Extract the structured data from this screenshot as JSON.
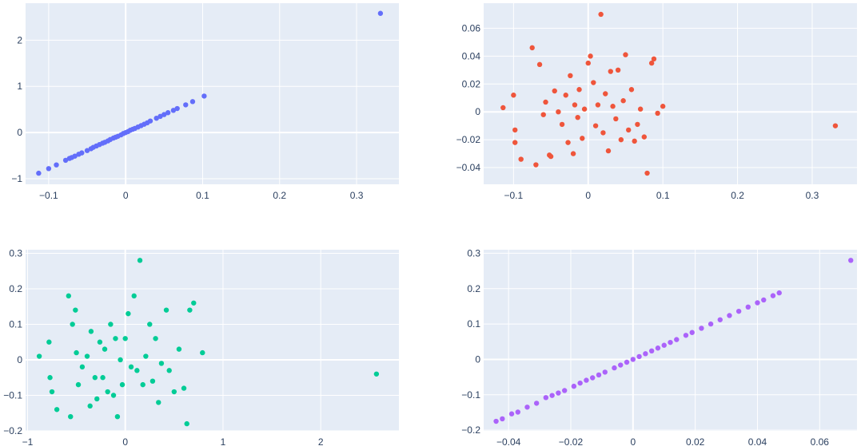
{
  "chart_data": [
    {
      "type": "scatter",
      "color": "#636efa",
      "xlim": [
        -0.13,
        0.355
      ],
      "ylim": [
        -1.12,
        2.8
      ],
      "xticks": [
        -0.1,
        0,
        0.1,
        0.2,
        0.3
      ],
      "xtick_labels": [
        "−0.1",
        "0",
        "0.1",
        "0.2",
        "0.3"
      ],
      "yticks": [
        -1,
        0,
        1,
        2
      ],
      "ytick_labels": [
        "−1",
        "0",
        "1",
        "2"
      ],
      "points": [
        [
          -0.113,
          -0.88
        ],
        [
          -0.1,
          -0.78
        ],
        [
          -0.09,
          -0.7
        ],
        [
          -0.078,
          -0.6
        ],
        [
          -0.073,
          -0.56
        ],
        [
          -0.07,
          -0.54
        ],
        [
          -0.066,
          -0.51
        ],
        [
          -0.061,
          -0.47
        ],
        [
          -0.057,
          -0.44
        ],
        [
          -0.05,
          -0.39
        ],
        [
          -0.045,
          -0.35
        ],
        [
          -0.042,
          -0.32
        ],
        [
          -0.038,
          -0.29
        ],
        [
          -0.034,
          -0.26
        ],
        [
          -0.03,
          -0.23
        ],
        [
          -0.027,
          -0.21
        ],
        [
          -0.023,
          -0.18
        ],
        [
          -0.02,
          -0.15
        ],
        [
          -0.016,
          -0.12
        ],
        [
          -0.013,
          -0.1
        ],
        [
          -0.01,
          -0.08
        ],
        [
          -0.006,
          -0.05
        ],
        [
          -0.003,
          -0.02
        ],
        [
          0.0,
          0.0
        ],
        [
          0.003,
          0.02
        ],
        [
          0.006,
          0.05
        ],
        [
          0.009,
          0.07
        ],
        [
          0.012,
          0.09
        ],
        [
          0.016,
          0.12
        ],
        [
          0.02,
          0.15
        ],
        [
          0.024,
          0.18
        ],
        [
          0.028,
          0.21
        ],
        [
          0.032,
          0.25
        ],
        [
          0.04,
          0.31
        ],
        [
          0.045,
          0.35
        ],
        [
          0.05,
          0.39
        ],
        [
          0.055,
          0.43
        ],
        [
          0.062,
          0.48
        ],
        [
          0.067,
          0.52
        ],
        [
          0.078,
          0.6
        ],
        [
          0.087,
          0.67
        ],
        [
          0.102,
          0.79
        ],
        [
          0.331,
          2.58
        ]
      ]
    },
    {
      "type": "scatter",
      "color": "#ef553b",
      "xlim": [
        -0.14,
        0.36
      ],
      "ylim": [
        -0.052,
        0.078
      ],
      "xticks": [
        -0.1,
        0,
        0.1,
        0.2,
        0.3
      ],
      "xtick_labels": [
        "−0.1",
        "0",
        "0.1",
        "0.2",
        "0.3"
      ],
      "yticks": [
        -0.04,
        -0.02,
        0,
        0.02,
        0.04,
        0.06
      ],
      "ytick_labels": [
        "−0.04",
        "−0.02",
        "0",
        "0.02",
        "0.04",
        "0.06"
      ],
      "points": [
        [
          -0.114,
          0.003
        ],
        [
          -0.1,
          0.012
        ],
        [
          -0.098,
          -0.013
        ],
        [
          -0.098,
          -0.022
        ],
        [
          -0.09,
          -0.034
        ],
        [
          -0.075,
          0.046
        ],
        [
          -0.07,
          -0.038
        ],
        [
          -0.065,
          0.034
        ],
        [
          -0.06,
          -0.002
        ],
        [
          -0.057,
          0.007
        ],
        [
          -0.052,
          -0.031
        ],
        [
          -0.05,
          -0.032
        ],
        [
          -0.045,
          0.015
        ],
        [
          -0.04,
          0.0
        ],
        [
          -0.035,
          -0.009
        ],
        [
          -0.03,
          0.012
        ],
        [
          -0.027,
          -0.022
        ],
        [
          -0.024,
          0.026
        ],
        [
          -0.02,
          -0.03
        ],
        [
          -0.018,
          0.005
        ],
        [
          -0.014,
          -0.004
        ],
        [
          -0.012,
          0.016
        ],
        [
          -0.008,
          -0.019
        ],
        [
          -0.005,
          0.002
        ],
        [
          0.0,
          0.035
        ],
        [
          0.003,
          0.04
        ],
        [
          0.007,
          0.021
        ],
        [
          0.01,
          -0.01
        ],
        [
          0.013,
          0.005
        ],
        [
          0.017,
          0.07
        ],
        [
          0.02,
          -0.015
        ],
        [
          0.023,
          0.013
        ],
        [
          0.027,
          -0.028
        ],
        [
          0.03,
          0.029
        ],
        [
          0.033,
          0.004
        ],
        [
          0.037,
          -0.005
        ],
        [
          0.04,
          0.03
        ],
        [
          0.044,
          -0.02
        ],
        [
          0.047,
          0.008
        ],
        [
          0.05,
          0.041
        ],
        [
          0.054,
          -0.013
        ],
        [
          0.058,
          0.016
        ],
        [
          0.062,
          -0.021
        ],
        [
          0.066,
          -0.009
        ],
        [
          0.07,
          0.002
        ],
        [
          0.075,
          -0.018
        ],
        [
          0.079,
          -0.044
        ],
        [
          0.085,
          0.035
        ],
        [
          0.088,
          0.038
        ],
        [
          0.093,
          -0.001
        ],
        [
          0.1,
          0.004
        ],
        [
          0.331,
          -0.01
        ]
      ]
    },
    {
      "type": "scatter",
      "color": "#00cc96",
      "xlim": [
        -1.02,
        2.8
      ],
      "ylim": [
        -0.2,
        0.31
      ],
      "xticks": [
        -1,
        0,
        1,
        2
      ],
      "xtick_labels": [
        "−1",
        "0",
        "1",
        "2"
      ],
      "yticks": [
        -0.2,
        -0.1,
        0,
        0.1,
        0.2,
        0.3
      ],
      "ytick_labels": [
        "−0.2",
        "−0.1",
        "0",
        "0.1",
        "0.2",
        "0.3"
      ],
      "points": [
        [
          -0.88,
          0.01
        ],
        [
          -0.78,
          0.05
        ],
        [
          -0.77,
          -0.05
        ],
        [
          -0.75,
          -0.09
        ],
        [
          -0.7,
          -0.14
        ],
        [
          -0.58,
          0.18
        ],
        [
          -0.56,
          -0.16
        ],
        [
          -0.54,
          0.1
        ],
        [
          -0.51,
          0.14
        ],
        [
          -0.5,
          0.02
        ],
        [
          -0.48,
          -0.07
        ],
        [
          -0.44,
          -0.02
        ],
        [
          -0.39,
          0.01
        ],
        [
          -0.36,
          -0.13
        ],
        [
          -0.35,
          0.08
        ],
        [
          -0.31,
          -0.05
        ],
        [
          -0.29,
          -0.11
        ],
        [
          -0.26,
          0.05
        ],
        [
          -0.23,
          -0.05
        ],
        [
          -0.21,
          0.03
        ],
        [
          -0.18,
          -0.09
        ],
        [
          -0.15,
          0.1
        ],
        [
          -0.12,
          -0.1
        ],
        [
          -0.1,
          0.06
        ],
        [
          -0.08,
          -0.16
        ],
        [
          -0.05,
          0.0
        ],
        [
          -0.03,
          -0.07
        ],
        [
          0.0,
          0.06
        ],
        [
          0.03,
          0.13
        ],
        [
          0.06,
          -0.02
        ],
        [
          0.09,
          0.18
        ],
        [
          0.12,
          -0.03
        ],
        [
          0.15,
          0.28
        ],
        [
          0.18,
          -0.07
        ],
        [
          0.21,
          0.01
        ],
        [
          0.25,
          0.1
        ],
        [
          0.28,
          -0.06
        ],
        [
          0.31,
          0.06
        ],
        [
          0.34,
          -0.12
        ],
        [
          0.37,
          -0.01
        ],
        [
          0.42,
          0.14
        ],
        [
          0.45,
          -0.03
        ],
        [
          0.5,
          -0.09
        ],
        [
          0.55,
          0.03
        ],
        [
          0.6,
          -0.08
        ],
        [
          0.63,
          -0.18
        ],
        [
          0.66,
          0.14
        ],
        [
          0.7,
          0.16
        ],
        [
          0.79,
          0.02
        ],
        [
          2.57,
          -0.04
        ]
      ]
    },
    {
      "type": "scatter",
      "color": "#ab63fa",
      "xlim": [
        -0.048,
        0.072
      ],
      "ylim": [
        -0.202,
        0.31
      ],
      "xticks": [
        -0.04,
        -0.02,
        0,
        0.02,
        0.04,
        0.06
      ],
      "xtick_labels": [
        "−0.04",
        "−0.02",
        "0",
        "0.02",
        "0.04",
        "0.06"
      ],
      "yticks": [
        -0.2,
        -0.1,
        0,
        0.1,
        0.2,
        0.3
      ],
      "ytick_labels": [
        "−0.2",
        "−0.1",
        "0",
        "0.1",
        "0.2",
        "0.3"
      ],
      "points": [
        [
          -0.044,
          -0.175
        ],
        [
          -0.042,
          -0.168
        ],
        [
          -0.039,
          -0.154
        ],
        [
          -0.037,
          -0.149
        ],
        [
          -0.034,
          -0.135
        ],
        [
          -0.031,
          -0.124
        ],
        [
          -0.028,
          -0.108
        ],
        [
          -0.026,
          -0.102
        ],
        [
          -0.024,
          -0.095
        ],
        [
          -0.022,
          -0.088
        ],
        [
          -0.019,
          -0.076
        ],
        [
          -0.017,
          -0.067
        ],
        [
          -0.015,
          -0.059
        ],
        [
          -0.013,
          -0.052
        ],
        [
          -0.011,
          -0.044
        ],
        [
          -0.009,
          -0.036
        ],
        [
          -0.006,
          -0.024
        ],
        [
          -0.004,
          -0.016
        ],
        [
          -0.002,
          -0.008
        ],
        [
          0.0,
          0.0
        ],
        [
          0.002,
          0.008
        ],
        [
          0.004,
          0.016
        ],
        [
          0.006,
          0.024
        ],
        [
          0.008,
          0.032
        ],
        [
          0.01,
          0.04
        ],
        [
          0.012,
          0.048
        ],
        [
          0.014,
          0.056
        ],
        [
          0.017,
          0.068
        ],
        [
          0.019,
          0.076
        ],
        [
          0.022,
          0.088
        ],
        [
          0.025,
          0.1
        ],
        [
          0.028,
          0.112
        ],
        [
          0.031,
          0.124
        ],
        [
          0.034,
          0.136
        ],
        [
          0.037,
          0.148
        ],
        [
          0.04,
          0.16
        ],
        [
          0.042,
          0.168
        ],
        [
          0.045,
          0.18
        ],
        [
          0.047,
          0.188
        ],
        [
          0.07,
          0.28
        ]
      ]
    }
  ]
}
